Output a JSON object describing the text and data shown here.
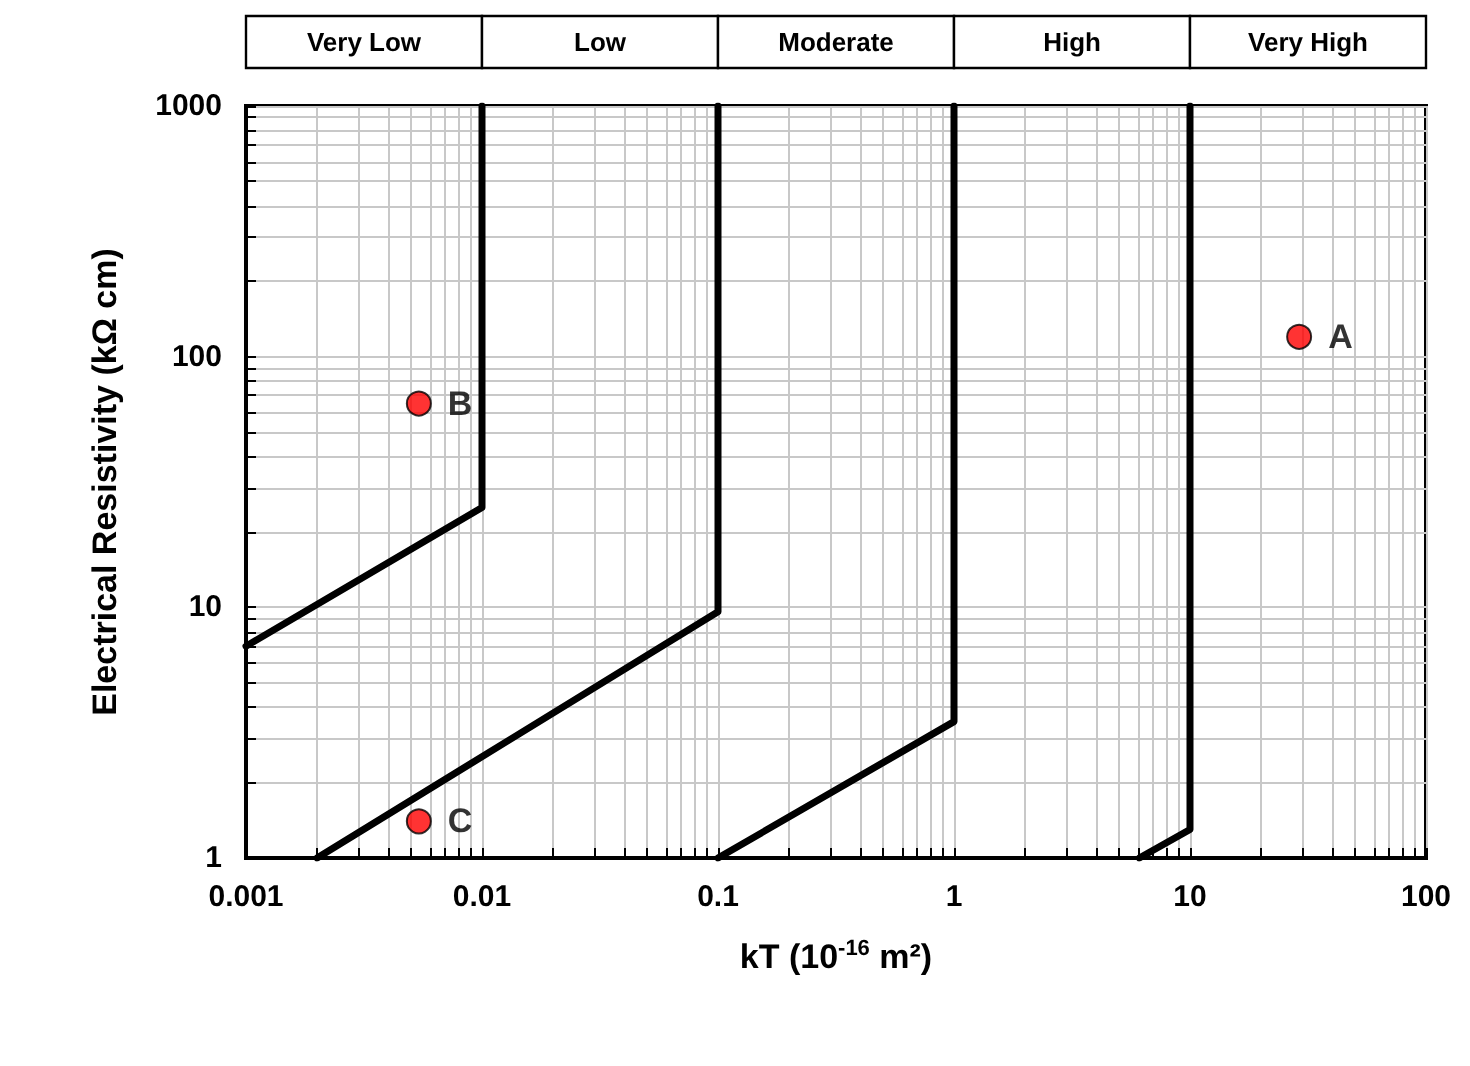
{
  "chart_data": {
    "type": "line",
    "xlabel": "kT (10$^{-16}$ m²)",
    "ylabel": "Electrical Resistivity (kΩ cm)",
    "log": "xy",
    "grid": true,
    "legend": false,
    "line_style": "solid",
    "marker": "none",
    "xlim": [
      0.001,
      100
    ],
    "ylim": [
      1,
      1000
    ],
    "xticks": [
      0.001,
      {
        "value": 0.002,
        "label": null
      },
      {
        "value": 0.003,
        "label": null
      },
      {
        "value": 0.004,
        "label": null
      },
      {
        "value": 0.005,
        "label": null
      },
      {
        "value": 0.006,
        "label": null
      },
      {
        "value": 0.007,
        "label": null
      },
      {
        "value": 0.008,
        "label": null
      },
      {
        "value": 0.009,
        "label": null
      },
      0.01,
      {
        "value": 0.02,
        "label": null
      },
      {
        "value": 0.03,
        "label": null
      },
      {
        "value": 0.04,
        "label": null
      },
      {
        "value": 0.05,
        "label": null
      },
      {
        "value": 0.06,
        "label": null
      },
      {
        "value": 0.07,
        "label": null
      },
      {
        "value": 0.08,
        "label": null
      },
      {
        "value": 0.09,
        "label": null
      },
      0.1,
      {
        "value": 0.2,
        "label": null
      },
      {
        "value": 0.3,
        "label": null
      },
      {
        "value": 0.4,
        "label": null
      },
      {
        "value": 0.5,
        "label": null
      },
      {
        "value": 0.6,
        "label": null
      },
      {
        "value": 0.7,
        "label": null
      },
      {
        "value": 0.8,
        "label": null
      },
      {
        "value": 0.9,
        "label": null
      },
      1,
      {
        "value": 2,
        "label": null
      },
      {
        "value": 3,
        "label": null
      },
      {
        "value": 4,
        "label": null
      },
      {
        "value": 5,
        "label": null
      },
      {
        "value": 6,
        "label": null
      },
      {
        "value": 7,
        "label": null
      },
      {
        "value": 8,
        "label": null
      },
      {
        "value": 9,
        "label": null
      },
      10,
      {
        "value": 20,
        "label": null
      },
      {
        "value": 30,
        "label": null
      },
      {
        "value": 40,
        "label": null
      },
      {
        "value": 50,
        "label": null
      },
      {
        "value": 60,
        "label": null
      },
      {
        "value": 70,
        "label": null
      },
      {
        "value": 80,
        "label": null
      },
      {
        "value": 90,
        "label": null
      },
      100
    ],
    "yticks": [
      1,
      {
        "value": 2,
        "label": null
      },
      {
        "value": 3,
        "label": null
      },
      {
        "value": 4,
        "label": null
      },
      {
        "value": 5,
        "label": null
      },
      {
        "value": 6,
        "label": null
      },
      {
        "value": 7,
        "label": null
      },
      {
        "value": 8,
        "label": null
      },
      {
        "value": 9,
        "label": null
      },
      10,
      {
        "value": 20,
        "label": null
      },
      {
        "value": 30,
        "label": null
      },
      {
        "value": 40,
        "label": null
      },
      {
        "value": 50,
        "label": null
      },
      {
        "value": 60,
        "label": null
      },
      {
        "value": 70,
        "label": null
      },
      {
        "value": 80,
        "label": null
      },
      {
        "value": 90,
        "label": null
      },
      100,
      {
        "value": 200,
        "label": null
      },
      {
        "value": 300,
        "label": null
      },
      {
        "value": 400,
        "label": null
      },
      {
        "value": 500,
        "label": null
      },
      {
        "value": 600,
        "label": null
      },
      {
        "value": 700,
        "label": null
      },
      {
        "value": 800,
        "label": null
      },
      {
        "value": 900,
        "label": null
      },
      1000
    ],
    "annotations": [
      "Very Low",
      "Low",
      "Moderate",
      "High",
      "Very High"
    ],
    "series": [
      {
        "color": "#000000",
        "x": [
          0.001,
          0.01,
          0.01
        ],
        "values": [
          7,
          25,
          1000
        ]
      },
      {
        "color": "#000000",
        "x": [
          0.002,
          0.1,
          0.1
        ],
        "values": [
          1,
          9.6,
          1000
        ]
      },
      {
        "color": "#000000",
        "x": [
          0.1,
          1,
          1
        ],
        "values": [
          1,
          3.5,
          1000
        ]
      },
      {
        "color": "#000000",
        "x": [
          6.1,
          10,
          10
        ],
        "values": [
          1,
          1.3,
          1000
        ]
      },
      {
        "type": "scatter",
        "name": "A",
        "color": "#ff0000",
        "marker": "circle",
        "x": [
          29
        ],
        "values": [
          120
        ]
      },
      {
        "type": "scatter",
        "name": "B",
        "color": "#ff0000",
        "marker": "circle",
        "x": [
          0.0054
        ],
        "values": [
          65
        ]
      },
      {
        "type": "scatter",
        "name": "C",
        "color": "#ff0000",
        "marker": "circle",
        "x": [
          0.0054
        ],
        "values": [
          1.4
        ]
      }
    ]
  }
}
